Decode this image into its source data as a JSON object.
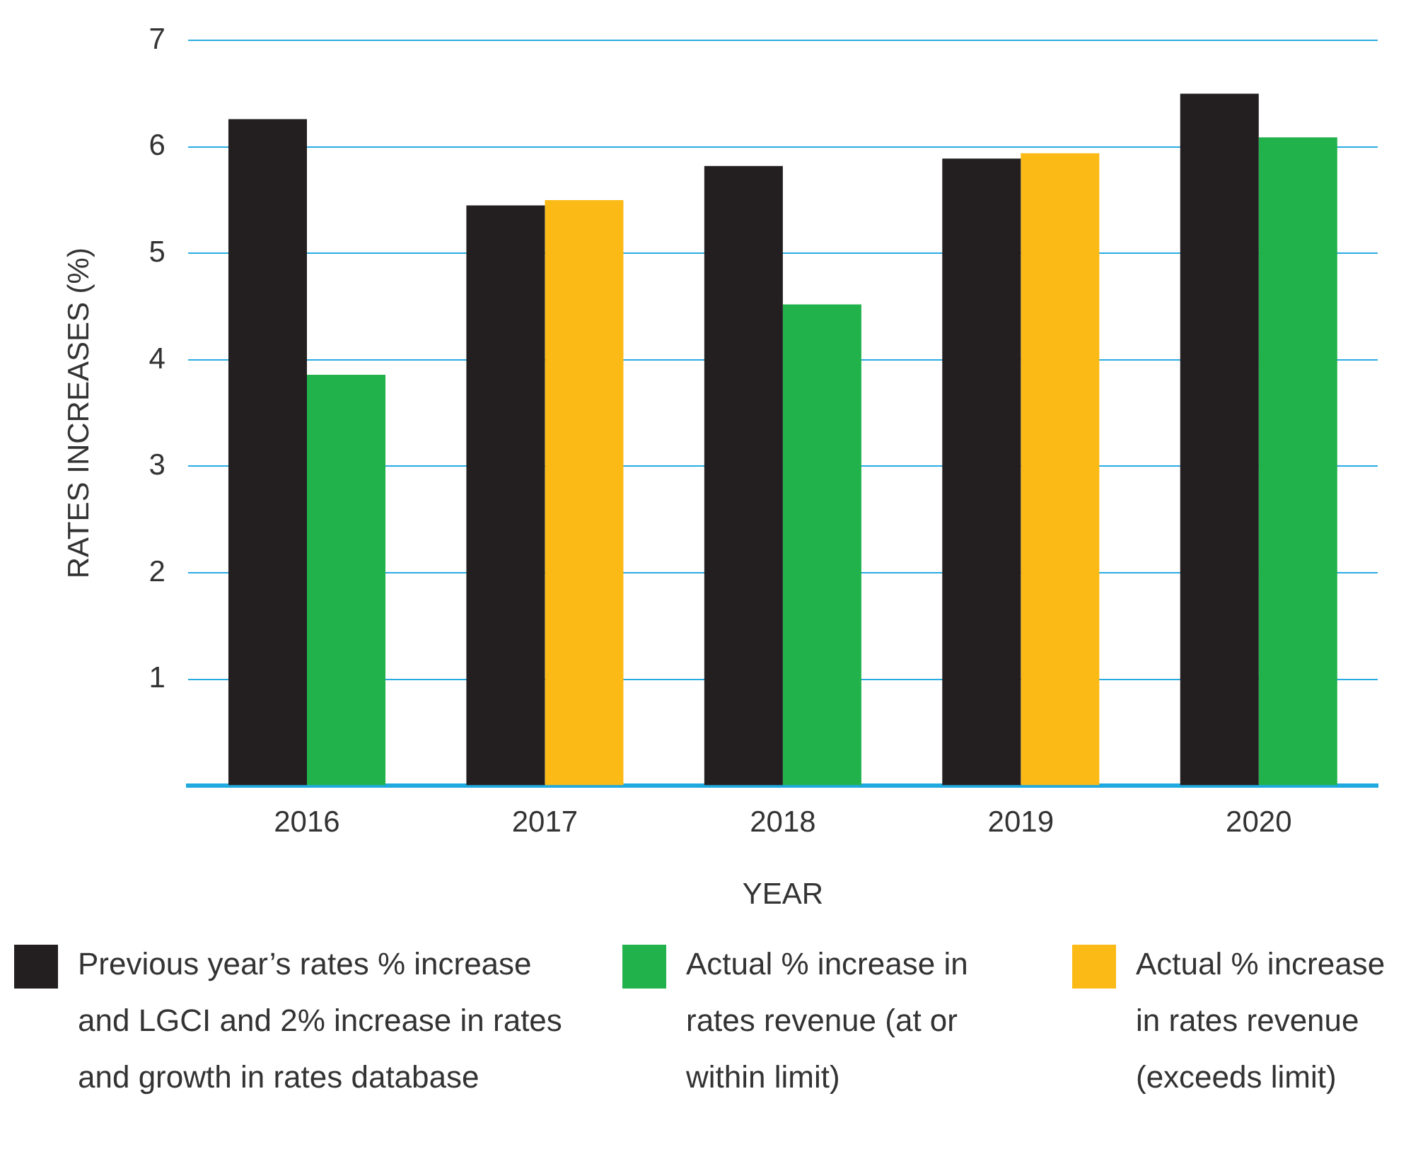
{
  "chart_data": {
    "type": "bar",
    "xlabel": "YEAR",
    "ylabel": "RATES INCREASES (%)",
    "categories": [
      "2016",
      "2017",
      "2018",
      "2019",
      "2020"
    ],
    "series": [
      {
        "name": "Previous year’s rates % increase and LGCI and 2% increase in rates and growth in rates database",
        "color": "#231f20",
        "values": [
          6.26,
          5.45,
          5.82,
          5.89,
          6.5
        ]
      },
      {
        "name": "Actual % increase in rates revenue (at or within limit)",
        "color": "#22b24c",
        "values": [
          3.86,
          null,
          4.52,
          null,
          6.09
        ]
      },
      {
        "name": "Actual % increase in rates revenue (exceeds limit)",
        "color": "#fbba16",
        "values": [
          null,
          5.5,
          null,
          5.94,
          null
        ]
      }
    ],
    "ylim": [
      0,
      7
    ],
    "yticks": [
      {
        "value": 0,
        "label": null
      },
      1,
      2,
      3,
      4,
      5,
      6,
      7
    ],
    "grid": "y",
    "legend": "bottom"
  }
}
